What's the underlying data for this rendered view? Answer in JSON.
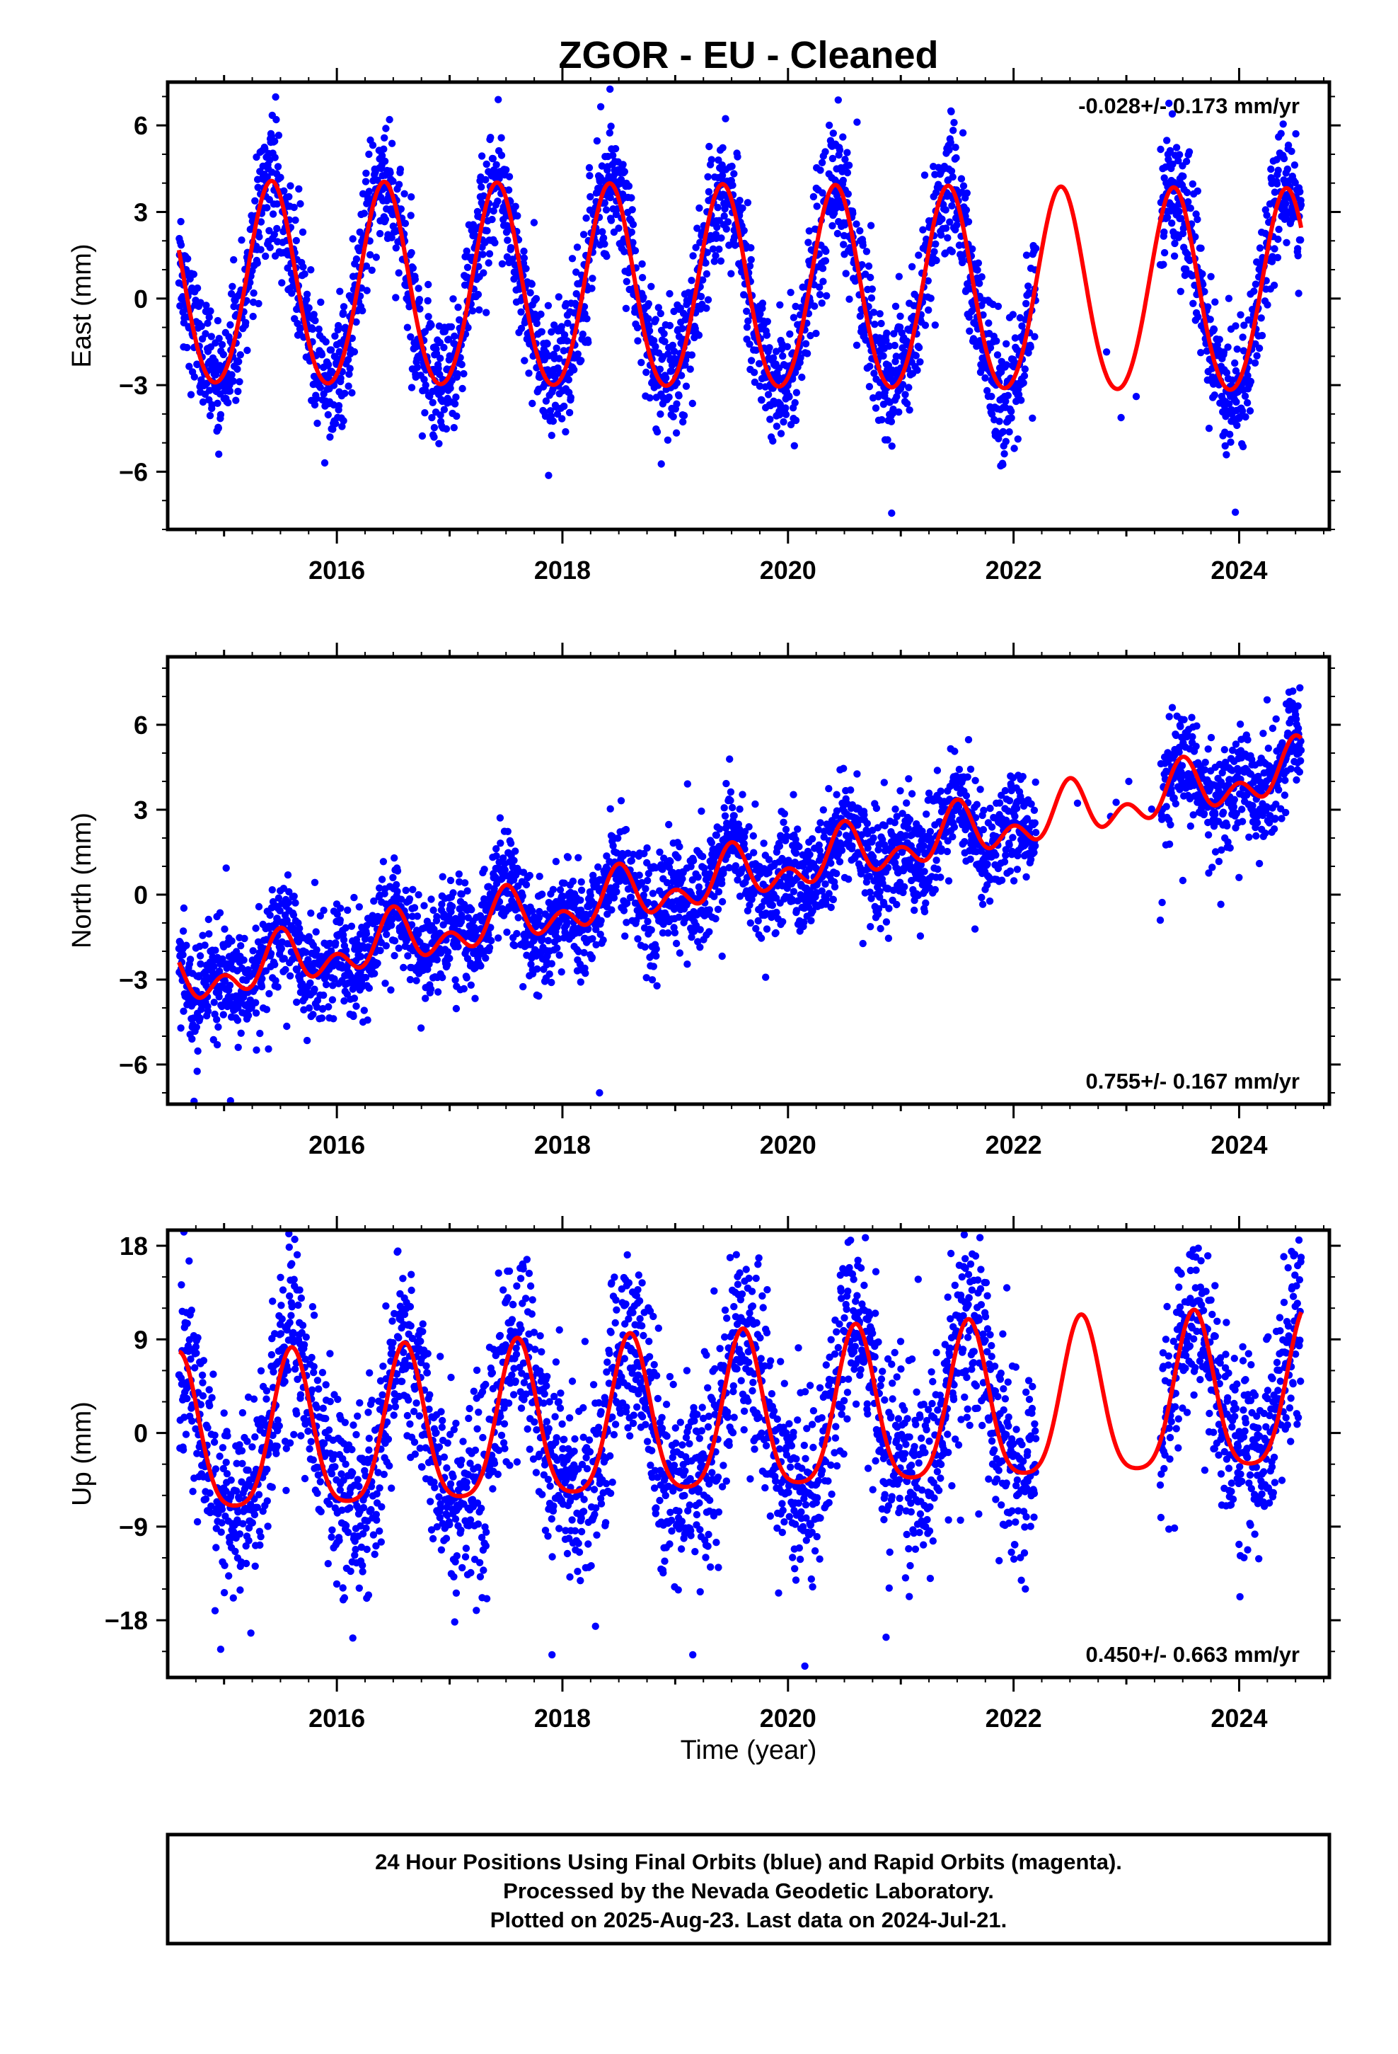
{
  "chart_data": {
    "type": "scatter",
    "title": "ZGOR  - EU - Cleaned",
    "x_label": "Time (year)",
    "xlim": [
      2014.5,
      2024.8
    ],
    "x_ticks": [
      2016,
      2018,
      2020,
      2022,
      2024
    ],
    "panels": [
      {
        "id": "east",
        "ylabel": "East (mm)",
        "ylim": [
          -8,
          7.5
        ],
        "y_ticks": [
          6,
          3,
          0,
          -3,
          -6
        ],
        "y_tick_labels": [
          "6",
          "3",
          "0",
          "−3",
          "−6"
        ],
        "rate": "-0.028+/- 0.173 mm/yr",
        "rate_position": "top-right",
        "model": {
          "trend_mm_per_yr": -0.028,
          "offset_mm": 0.35,
          "annual_amp_mm": 3.5,
          "annual_peak_year_fraction": 0.42,
          "semiannual_amp_mm": 0.25
        },
        "observations": {
          "color": "#0000ff",
          "scatter_sd_mm": 1.1,
          "start": 2014.6,
          "end": 2024.55
        }
      },
      {
        "id": "north",
        "ylabel": "North (mm)",
        "ylim": [
          -7.4,
          8.4
        ],
        "y_ticks": [
          6,
          3,
          0,
          -3,
          -6
        ],
        "y_tick_labels": [
          "6",
          "3",
          "0",
          "−3",
          "−6"
        ],
        "rate": "0.755+/- 0.167 mm/yr",
        "rate_position": "bottom-right",
        "model": {
          "trend_mm_per_yr": 0.755,
          "offset_mm": -3.1,
          "annual_amp_mm": 0.65,
          "annual_peak_year_fraction": 0.5,
          "semiannual_amp_mm": 0.6
        },
        "observations": {
          "color": "#0000ff",
          "scatter_sd_mm": 0.9,
          "start": 2014.6,
          "end": 2024.55
        }
      },
      {
        "id": "up",
        "ylabel": "Up (mm)",
        "ylim": [
          -23.5,
          19.5
        ],
        "y_ticks": [
          18,
          9,
          0,
          -9,
          -18
        ],
        "y_tick_labels": [
          "18",
          "9",
          "0",
          "−9",
          "−18"
        ],
        "rate": "0.450+/- 0.663 mm/yr",
        "rate_position": "bottom-right",
        "model": {
          "trend_mm_per_yr": 0.45,
          "offset_mm": -1.2,
          "annual_amp_mm": 7.5,
          "annual_peak_year_fraction": 0.6,
          "semiannual_amp_mm": 1.5
        },
        "observations": {
          "color": "#0000ff",
          "scatter_sd_mm": 4.5,
          "start": 2014.6,
          "end": 2024.55
        }
      }
    ],
    "data_gaps": [
      [
        2022.2,
        2023.3
      ]
    ],
    "model_color": "#ff0000",
    "model_end": 2024.55
  },
  "footer": {
    "line1": "24 Hour Positions Using Final Orbits (blue) and Rapid Orbits (magenta).",
    "line2": "Processed by the Nevada Geodetic Laboratory.",
    "line3": "Plotted on 2025-Aug-23. Last data on 2024-Jul-21."
  }
}
